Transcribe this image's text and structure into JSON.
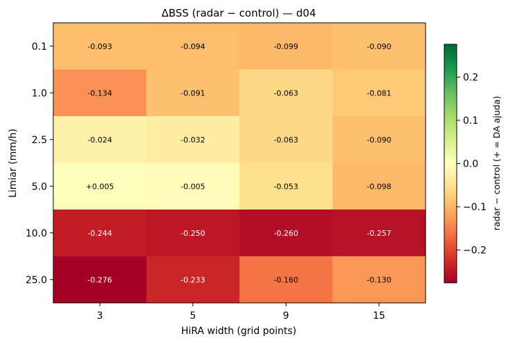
{
  "chart_data": {
    "type": "heatmap",
    "title": "ΔBSS  (radar − control)  —  d04",
    "xlabel": "HiRA width (grid points)",
    "ylabel": "Limiar (mm/h)",
    "x_categories": [
      "3",
      "5",
      "9",
      "15"
    ],
    "y_categories": [
      "0.1",
      "1.0",
      "2.5",
      "5.0",
      "10.0",
      "25.0"
    ],
    "values": [
      [
        -0.093,
        -0.094,
        -0.099,
        -0.09
      ],
      [
        -0.134,
        -0.091,
        -0.063,
        -0.081
      ],
      [
        -0.024,
        -0.032,
        -0.063,
        -0.09
      ],
      [
        0.005,
        -0.005,
        -0.053,
        -0.098
      ],
      [
        -0.244,
        -0.25,
        -0.26,
        -0.257
      ],
      [
        -0.276,
        -0.233,
        -0.16,
        -0.13
      ]
    ],
    "cell_labels": [
      [
        "-0.093",
        "-0.094",
        "-0.099",
        "-0.090"
      ],
      [
        "-0.134",
        "-0.091",
        "-0.063",
        "-0.081"
      ],
      [
        "-0.024",
        "-0.032",
        "-0.063",
        "-0.090"
      ],
      [
        "+0.005",
        "-0.005",
        "-0.053",
        "-0.098"
      ],
      [
        "-0.244",
        "-0.250",
        "-0.260",
        "-0.257"
      ],
      [
        "-0.276",
        "-0.233",
        "-0.160",
        "-0.130"
      ]
    ],
    "colormap": "RdYlGn",
    "vlim": [
      -0.276,
      0.276
    ],
    "colorbar": {
      "label": "radar − control  (+ = DA ajuda)",
      "ticks": [
        0.2,
        0.1,
        0.0,
        -0.1,
        -0.2
      ],
      "tick_labels": [
        "0.2",
        "0.1",
        "0.0",
        "−0.1",
        "−0.2"
      ]
    }
  }
}
